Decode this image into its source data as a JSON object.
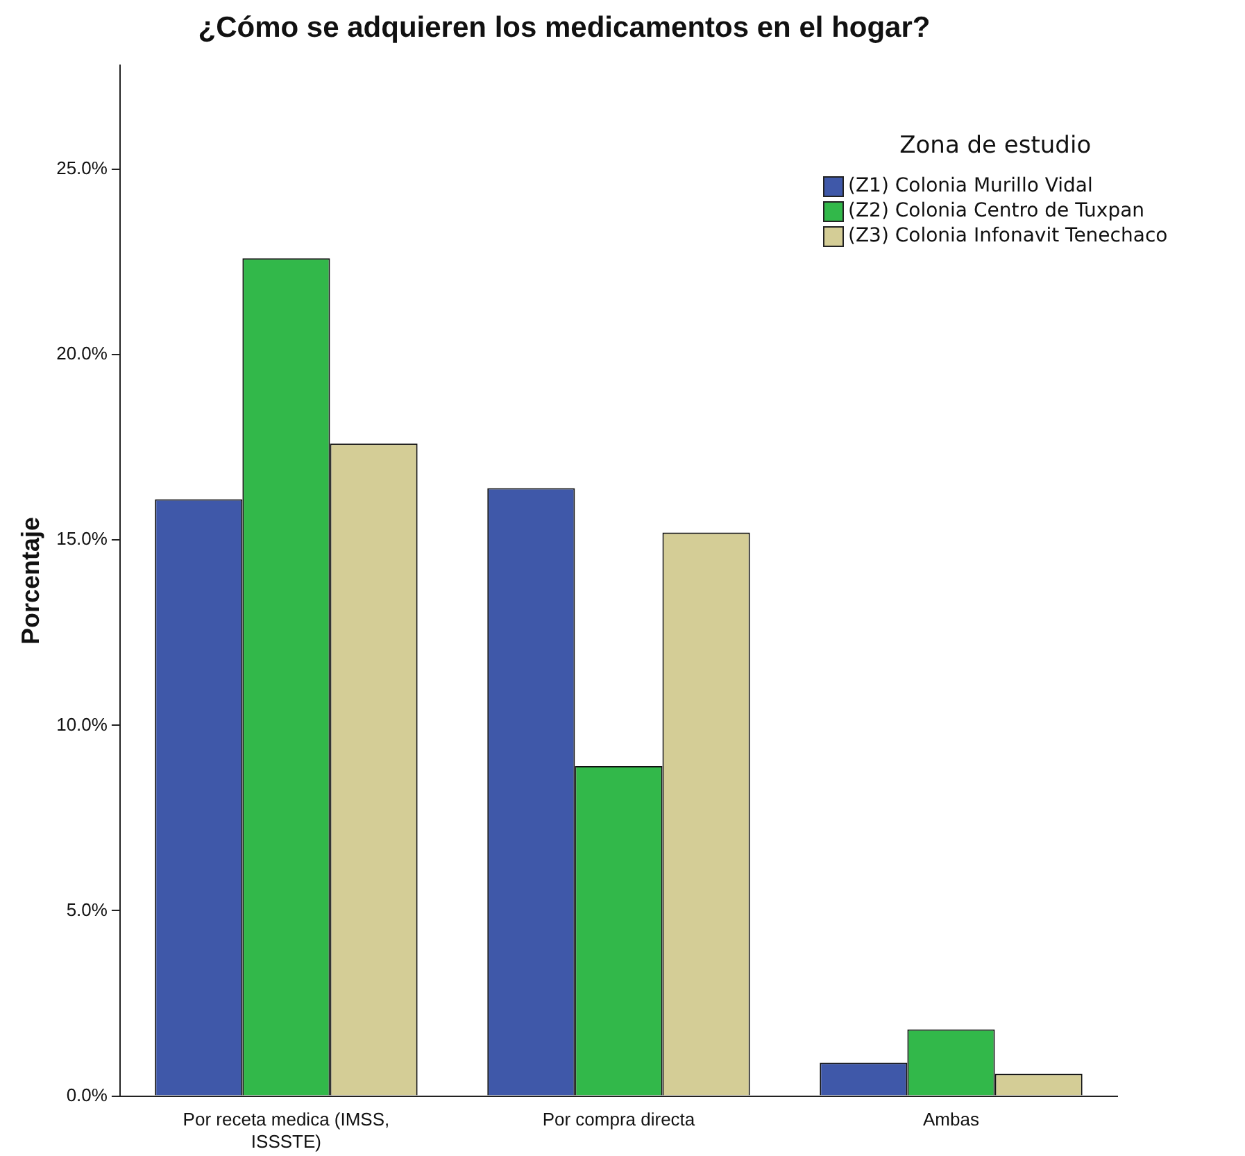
{
  "chart_data": {
    "type": "bar",
    "title": "¿Cómo se adquieren los medicamentos en el hogar?",
    "ylabel": "Porcentaje",
    "legend_title": "Zona de estudio",
    "categories": [
      "Por receta medica (IMSS, ISSSTE)",
      "Por compra directa",
      "Ambas"
    ],
    "series": [
      {
        "name": "(Z1) Colonia Murillo Vidal",
        "color": "#3f58a9",
        "values": [
          16.1,
          16.4,
          0.9
        ]
      },
      {
        "name": "(Z2) Colonia Centro de Tuxpan",
        "color": "#32b84a",
        "values": [
          22.6,
          8.9,
          1.8
        ]
      },
      {
        "name": "(Z3) Colonia Infonavit Tenechaco",
        "color": "#d4cd96",
        "values": [
          17.6,
          15.2,
          0.6
        ]
      }
    ],
    "ylim": [
      0,
      27.8
    ],
    "yticks": [
      {
        "value": 0,
        "label": "0.0%"
      },
      {
        "value": 5,
        "label": "5.0%"
      },
      {
        "value": 10,
        "label": "10.0%"
      },
      {
        "value": 15,
        "label": "15.0%"
      },
      {
        "value": 20,
        "label": "20.0%"
      },
      {
        "value": 25,
        "label": "25.0%"
      }
    ],
    "grid": false,
    "legend": "top right"
  }
}
